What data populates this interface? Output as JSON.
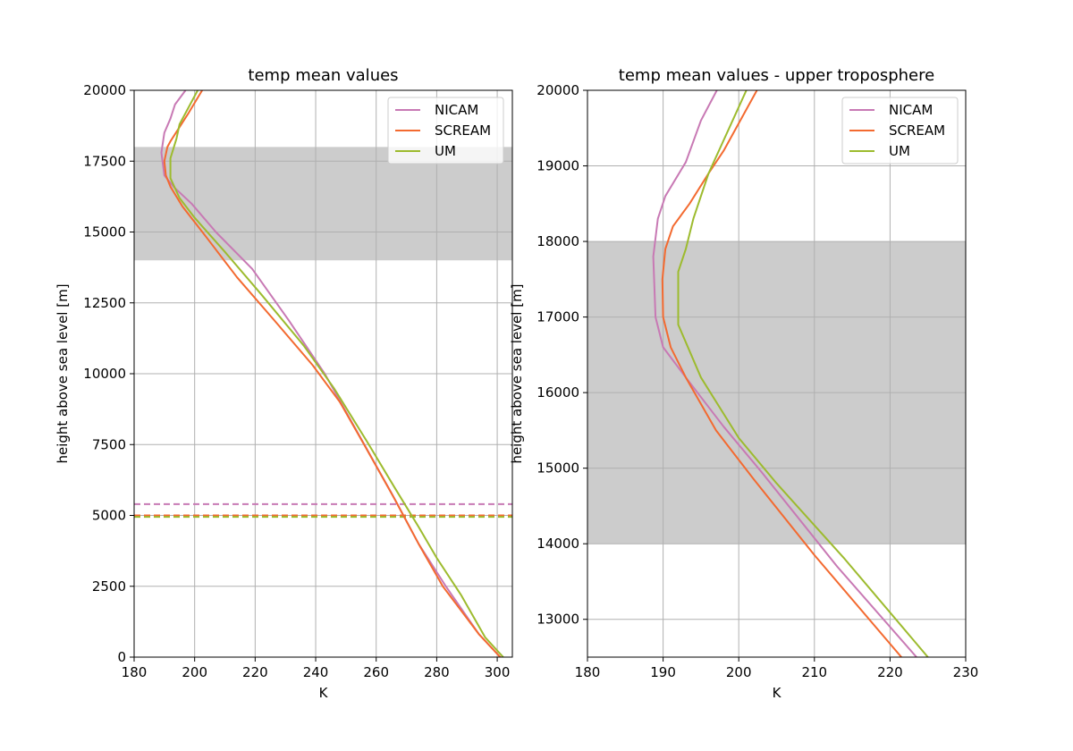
{
  "chart_data": [
    {
      "type": "line",
      "title": "temp mean values",
      "xlabel": "K",
      "ylabel": "height above sea level [m]",
      "xlim": [
        180,
        305
      ],
      "ylim": [
        0,
        20000
      ],
      "xticks": [
        "180",
        "200",
        "220",
        "240",
        "260",
        "280",
        "300"
      ],
      "yticks": [
        "0",
        "2500",
        "5000",
        "7500",
        "10000",
        "12500",
        "15000",
        "17500",
        "20000"
      ],
      "grid": true,
      "legend": "upper right",
      "shaded_band": {
        "y": [
          14000,
          18000
        ],
        "color": "#cccccc"
      },
      "hlines": [
        {
          "series": "NICAM",
          "y": 5400,
          "style": "dashed"
        },
        {
          "series": "SCREAM",
          "y": 5000,
          "style": "dashed"
        },
        {
          "series": "UM",
          "y": 4950,
          "style": "dashed"
        }
      ],
      "series": [
        {
          "name": "NICAM",
          "color": "#c879b4",
          "x": [
            301,
            294,
            283,
            274,
            265,
            254,
            243,
            231,
            219,
            207,
            199,
            193,
            190,
            189,
            190,
            192,
            193.5,
            197
          ],
          "y": [
            0,
            800,
            2500,
            4000,
            5800,
            7900,
            10000,
            11900,
            13700,
            15000,
            16000,
            16600,
            17000,
            17800,
            18500,
            19000,
            19500,
            20000
          ]
        },
        {
          "name": "SCREAM",
          "color": "#f36a30",
          "x": [
            301,
            294,
            282,
            274,
            266,
            256,
            248,
            239,
            227,
            214,
            204,
            196,
            192,
            190.5,
            190,
            191,
            192,
            198,
            202.5
          ],
          "y": [
            0,
            800,
            2500,
            4000,
            5600,
            7500,
            9000,
            10300,
            11800,
            13400,
            14800,
            15900,
            16600,
            17000,
            17500,
            18000,
            18200,
            19200,
            20000
          ]
        },
        {
          "name": "UM",
          "color": "#9dbb2e",
          "x": [
            302,
            296,
            288,
            280,
            274,
            266,
            257,
            246,
            236,
            222,
            210,
            200,
            195,
            192,
            192,
            194,
            195,
            201
          ],
          "y": [
            0,
            700,
            2200,
            3500,
            4600,
            6000,
            7600,
            9500,
            11000,
            12800,
            14300,
            15500,
            16200,
            16900,
            17600,
            18300,
            18800,
            20000
          ]
        }
      ]
    },
    {
      "type": "line",
      "title": "temp mean values - upper troposphere",
      "xlabel": "K",
      "ylabel": "height above sea level [m]",
      "xlim": [
        180,
        230
      ],
      "ylim": [
        12500,
        20000
      ],
      "xticks": [
        "180",
        "190",
        "200",
        "210",
        "220",
        "230"
      ],
      "yticks": [
        "13000",
        "14000",
        "15000",
        "16000",
        "17000",
        "18000",
        "19000",
        "20000"
      ],
      "grid": true,
      "legend": "upper right",
      "shaded_band": {
        "y": [
          14000,
          18000
        ],
        "color": "#cccccc"
      },
      "series": [
        {
          "name": "NICAM",
          "color": "#c879b4",
          "x": [
            223.5,
            213,
            203,
            198,
            193,
            190,
            189,
            188.7,
            189.3,
            190.3,
            193,
            195,
            197.1
          ],
          "y": [
            12500,
            13700,
            14950,
            15550,
            16200,
            16600,
            17000,
            17800,
            18300,
            18600,
            19050,
            19600,
            20000
          ]
        },
        {
          "name": "SCREAM",
          "color": "#f36a30",
          "x": [
            221.5,
            210,
            202,
            197,
            193,
            191,
            190,
            189.9,
            190.3,
            191.3,
            193.5,
            196,
            198,
            202.4
          ],
          "y": [
            12500,
            13850,
            14850,
            15500,
            16200,
            16600,
            17000,
            17500,
            17900,
            18200,
            18500,
            18900,
            19200,
            20000
          ]
        },
        {
          "name": "UM",
          "color": "#9dbb2e",
          "x": [
            225,
            214,
            205,
            200,
            195,
            192,
            192,
            193,
            194,
            196,
            201
          ],
          "y": [
            12500,
            13800,
            14800,
            15400,
            16200,
            16900,
            17600,
            17900,
            18300,
            18900,
            20000
          ]
        }
      ]
    }
  ]
}
